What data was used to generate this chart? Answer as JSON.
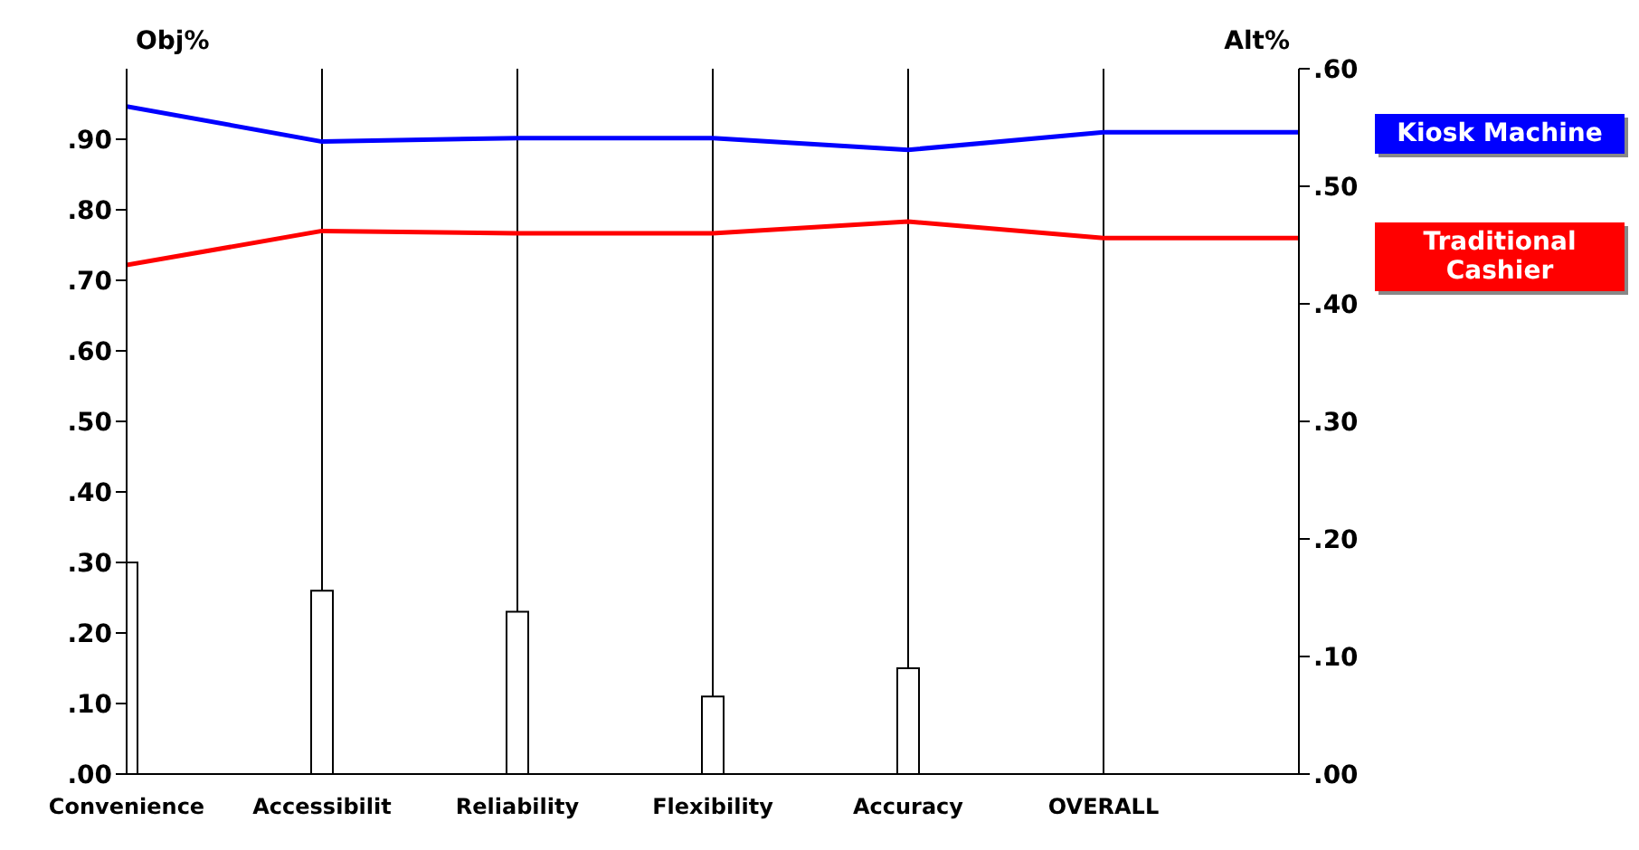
{
  "chart_data": {
    "type": "line",
    "ylabel": "Obj%",
    "y2label": "Alt%",
    "categories": [
      "Convenience",
      "Accessibilit",
      "Reliability",
      "Flexibility",
      "Accuracy",
      "OVERALL",
      null
    ],
    "ylim": [
      0,
      1
    ],
    "yticks": [
      {
        "value": 0,
        "label": ".00"
      },
      {
        "value": 0.1,
        "label": ".10"
      },
      {
        "value": 0.2,
        "label": ".20"
      },
      {
        "value": 0.3,
        "label": ".30"
      },
      {
        "value": 0.4,
        "label": ".40"
      },
      {
        "value": 0.5,
        "label": ".50"
      },
      {
        "value": 0.6,
        "label": ".60"
      },
      {
        "value": 0.7,
        "label": ".70"
      },
      {
        "value": 0.8,
        "label": ".80"
      },
      {
        "value": 0.9,
        "label": ".90"
      }
    ],
    "y2lim": [
      0,
      0.6
    ],
    "y2ticks": [
      {
        "value": 0,
        "label": ".00"
      },
      {
        "value": 0.1,
        "label": ".10"
      },
      {
        "value": 0.2,
        "label": ".20"
      },
      {
        "value": 0.3,
        "label": ".30"
      },
      {
        "value": 0.4,
        "label": ".40"
      },
      {
        "value": 0.5,
        "label": ".50"
      },
      {
        "value": 0.6,
        "label": ".60"
      }
    ],
    "grid": "x",
    "legend": "right",
    "marker": "none",
    "series": [
      {
        "type": "bar",
        "color": "#ffffff",
        "values": [
          0.3,
          0.26,
          0.23,
          0.11,
          0.15,
          null,
          null
        ]
      },
      {
        "name": "Kiosk Machine",
        "color": "#0000ff",
        "axis": "y2",
        "values": [
          0.568,
          0.538,
          0.541,
          0.541,
          0.531,
          0.546,
          0.546
        ]
      },
      {
        "name": "Traditional Cashier",
        "color": "#ff0000",
        "axis": "y2",
        "values": [
          0.433,
          0.462,
          0.46,
          0.46,
          0.47,
          0.456,
          0.456
        ]
      }
    ]
  }
}
